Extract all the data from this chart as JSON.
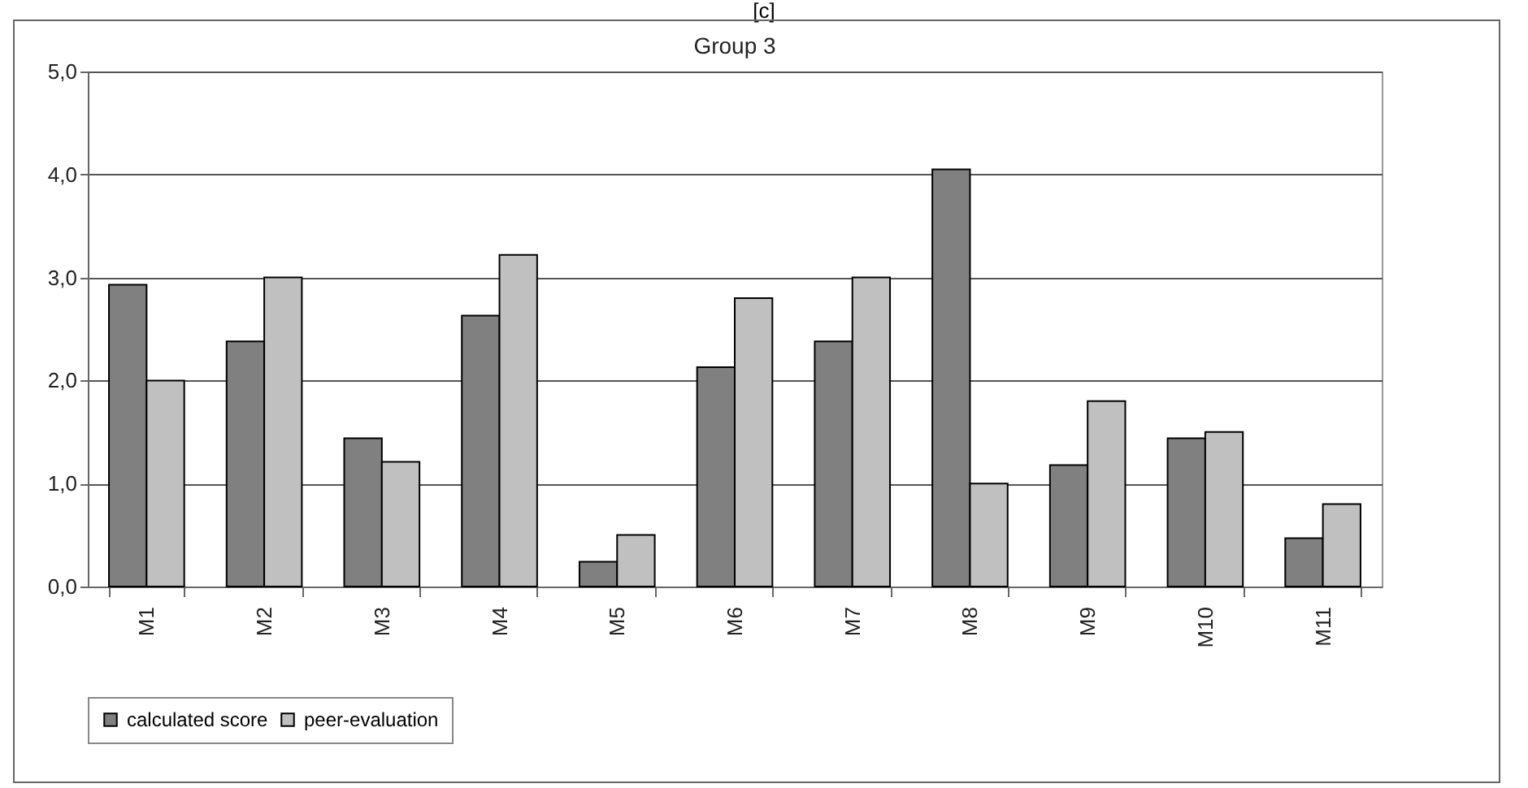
{
  "chart_data": {
    "type": "bar",
    "title": "Group 3",
    "annotations": [
      "[c]"
    ],
    "categories": [
      "M1",
      "M2",
      "M3",
      "M4",
      "M5",
      "M6",
      "M7",
      "M8",
      "M9",
      "M10",
      "M11"
    ],
    "series": [
      {
        "name": "calculated score",
        "color": "#808080",
        "values": [
          2.93,
          2.38,
          1.44,
          2.63,
          0.24,
          2.13,
          2.38,
          4.05,
          1.18,
          1.44,
          0.47
        ]
      },
      {
        "name": "peer-evaluation",
        "color": "#c0c0c0",
        "values": [
          2.0,
          3.0,
          1.21,
          3.22,
          0.5,
          2.8,
          3.0,
          1.0,
          1.8,
          1.5,
          0.8
        ]
      }
    ],
    "ylim": [
      0,
      5
    ],
    "yticks": [
      {
        "value": 0,
        "label": "0,0"
      },
      {
        "value": 1,
        "label": "1,0"
      },
      {
        "value": 2,
        "label": "2,0"
      },
      {
        "value": 3,
        "label": "3,0"
      },
      {
        "value": 4,
        "label": "4,0"
      },
      {
        "value": 5,
        "label": "5,0"
      }
    ],
    "grid": "y",
    "legend": "bottom"
  }
}
